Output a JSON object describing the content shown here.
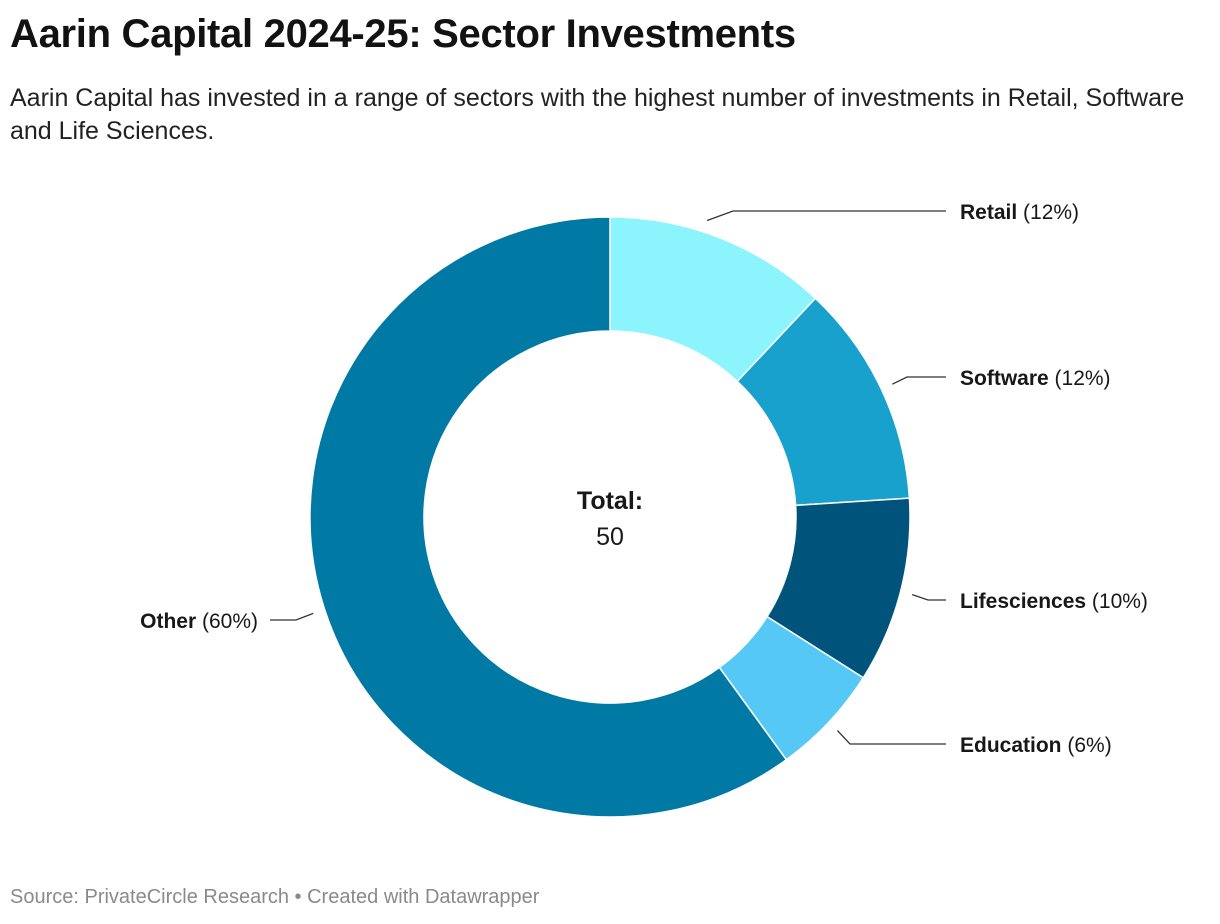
{
  "header": {
    "title": "Aarin Capital 2024-25: Sector Investments",
    "subtitle": "Aarin Capital has invested in a range of sectors with the highest number of investments in Retail, Software and Life Sciences."
  },
  "chart_data": {
    "type": "pie",
    "variant": "donut",
    "title": "Aarin Capital 2024-25: Sector Investments",
    "center_label": "Total:",
    "center_value": "50",
    "slices": [
      {
        "name": "Retail",
        "pct_label": "(12%)",
        "value": 12,
        "color": "#8bf4fd"
      },
      {
        "name": "Software",
        "pct_label": "(12%)",
        "value": 12,
        "color": "#19a1cd"
      },
      {
        "name": "Lifesciences",
        "pct_label": "(10%)",
        "value": 10,
        "color": "#00547b"
      },
      {
        "name": "Education",
        "pct_label": "(6%)",
        "value": 6,
        "color": "#56c8f6"
      },
      {
        "name": "Other",
        "pct_label": "(60%)",
        "value": 60,
        "color": "#0079a5"
      }
    ]
  },
  "footer": {
    "source": "Source: PrivateCircle Research • Created with Datawrapper"
  }
}
